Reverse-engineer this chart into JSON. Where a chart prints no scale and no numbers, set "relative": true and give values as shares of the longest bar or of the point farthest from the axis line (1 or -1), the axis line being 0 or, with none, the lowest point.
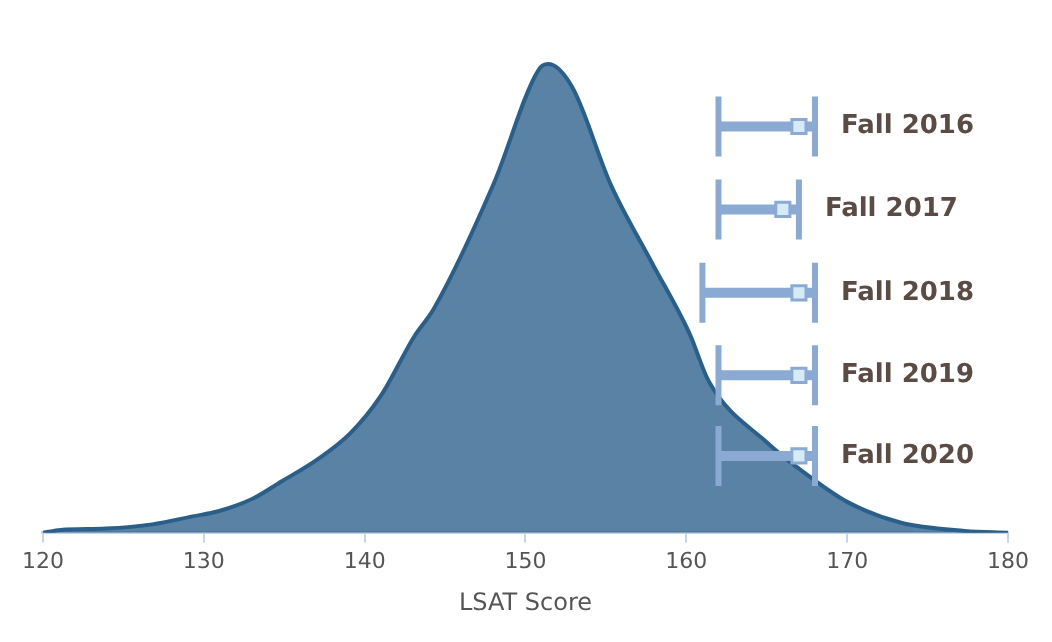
{
  "chart_data": {
    "type": "area",
    "relative": true,
    "xlabel": "LSAT Score",
    "xlim": [
      120,
      180
    ],
    "xticks": [
      120,
      130,
      140,
      150,
      160,
      170,
      180
    ],
    "legend": false,
    "series": [
      {
        "color": "#2a5f8a",
        "x": [
          120,
          121.1,
          123.9,
          126.8,
          129.3,
          130.9,
          133,
          134.9,
          137,
          139.1,
          141,
          143.1,
          144.3,
          148,
          150.8,
          151.4,
          152.9,
          155.3,
          157.8,
          160.2,
          161.4,
          165.1,
          167.5,
          170,
          173.3,
          177.3,
          180
        ],
        "values": [
          0,
          0.006,
          0.009,
          0.018,
          0.035,
          0.046,
          0.072,
          0.111,
          0.155,
          0.212,
          0.292,
          0.42,
          0.478,
          0.743,
          0.987,
          1,
          0.951,
          0.743,
          0.58,
          0.425,
          0.323,
          0.19,
          0.124,
          0.066,
          0.022,
          0.004,
          0
        ]
      },
      {
        "type": "scatter",
        "name": "Fall 2016",
        "color": "#8aaad4",
        "marker": "square",
        "x": [
          167
        ],
        "values": [
          0.867
        ],
        "xerrors": [
          [
            162,
            168
          ]
        ]
      },
      {
        "type": "scatter",
        "name": "Fall 2017",
        "color": "#8aaad4",
        "marker": "square",
        "x": [
          166
        ],
        "values": [
          0.69
        ],
        "xerrors": [
          [
            162,
            167
          ]
        ]
      },
      {
        "type": "scatter",
        "name": "Fall 2018",
        "color": "#8aaad4",
        "marker": "square",
        "x": [
          167
        ],
        "values": [
          0.512
        ],
        "xerrors": [
          [
            161,
            168
          ]
        ]
      },
      {
        "type": "scatter",
        "name": "Fall 2019",
        "color": "#8aaad4",
        "marker": "square",
        "x": [
          167
        ],
        "values": [
          0.336
        ],
        "xerrors": [
          [
            162,
            168
          ]
        ]
      },
      {
        "type": "scatter",
        "name": "Fall 2020",
        "color": "#8aaad4",
        "marker": "square",
        "x": [
          167
        ],
        "values": [
          0.164
        ],
        "xerrors": [
          [
            162,
            168
          ]
        ]
      }
    ]
  }
}
